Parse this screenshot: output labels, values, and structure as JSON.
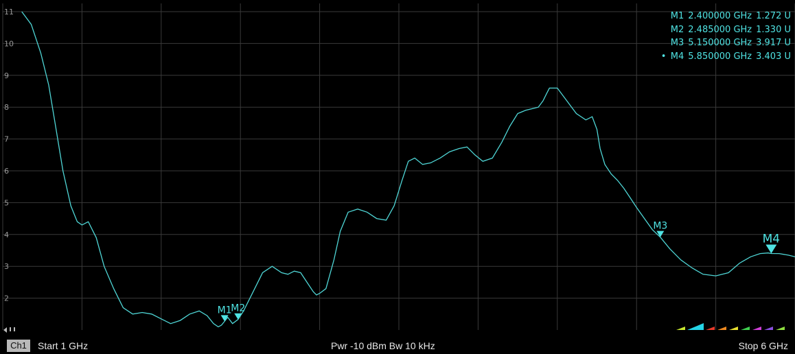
{
  "chart_data": {
    "type": "line",
    "x_unit": "GHz",
    "xlim": [
      1,
      6
    ],
    "ylim": [
      1,
      11
    ],
    "y_ticks": [
      "2",
      "3",
      "4",
      "5",
      "6",
      "7",
      "8",
      "9",
      "10",
      "11"
    ],
    "grid": true,
    "line_color": "#4fd6d6",
    "series": [
      {
        "x": [
          1.12,
          1.18,
          1.24,
          1.29,
          1.33,
          1.38,
          1.43,
          1.47,
          1.5,
          1.54,
          1.59,
          1.64,
          1.7,
          1.76,
          1.82,
          1.88,
          1.94,
          2.0,
          2.06,
          2.12,
          2.18,
          2.24,
          2.29,
          2.33,
          2.36,
          2.38,
          2.4,
          2.42,
          2.45,
          2.485,
          2.52,
          2.58,
          2.64,
          2.7,
          2.76,
          2.8,
          2.84,
          2.88,
          2.92,
          2.96,
          2.98,
          3.0,
          3.04,
          3.09,
          3.13,
          3.18,
          3.24,
          3.3,
          3.36,
          3.42,
          3.47,
          3.52,
          3.56,
          3.6,
          3.65,
          3.7,
          3.76,
          3.82,
          3.88,
          3.93,
          3.98,
          4.03,
          4.09,
          4.15,
          4.2,
          4.25,
          4.3,
          4.34,
          4.38,
          4.41,
          4.43,
          4.45,
          4.5,
          4.56,
          4.62,
          4.68,
          4.72,
          4.75,
          4.77,
          4.8,
          4.84,
          4.88,
          4.92,
          4.96,
          5.0,
          5.05,
          5.1,
          5.15,
          5.21,
          5.28,
          5.35,
          5.42,
          5.5,
          5.58,
          5.65,
          5.72,
          5.78,
          5.83,
          5.85,
          5.9,
          5.96,
          6.0
        ],
        "y": [
          11.0,
          10.6,
          9.7,
          8.7,
          7.5,
          6.0,
          4.9,
          4.4,
          4.3,
          4.4,
          3.9,
          3.0,
          2.3,
          1.7,
          1.5,
          1.55,
          1.5,
          1.35,
          1.2,
          1.3,
          1.5,
          1.6,
          1.45,
          1.2,
          1.1,
          1.15,
          1.272,
          1.4,
          1.2,
          1.33,
          1.6,
          2.2,
          2.8,
          3.0,
          2.8,
          2.75,
          2.85,
          2.8,
          2.5,
          2.2,
          2.1,
          2.15,
          2.3,
          3.2,
          4.1,
          4.7,
          4.8,
          4.7,
          4.5,
          4.45,
          4.9,
          5.7,
          6.3,
          6.4,
          6.2,
          6.25,
          6.4,
          6.6,
          6.7,
          6.75,
          6.5,
          6.3,
          6.4,
          6.9,
          7.4,
          7.8,
          7.9,
          7.95,
          8.0,
          8.2,
          8.4,
          8.6,
          8.6,
          8.2,
          7.8,
          7.6,
          7.7,
          7.3,
          6.7,
          6.2,
          5.9,
          5.7,
          5.45,
          5.15,
          4.85,
          4.5,
          4.15,
          3.917,
          3.55,
          3.2,
          2.95,
          2.75,
          2.7,
          2.8,
          3.1,
          3.3,
          3.4,
          3.42,
          3.403,
          3.4,
          3.35,
          3.3
        ]
      }
    ],
    "markers": [
      {
        "label": "M1",
        "freq": "2.400000 GHz",
        "value": "1.272 U",
        "x": 2.4,
        "y": 1.272
      },
      {
        "label": "M2",
        "freq": "2.485000 GHz",
        "value": "1.330 U",
        "x": 2.485,
        "y": 1.33
      },
      {
        "label": "M3",
        "freq": "5.150000 GHz",
        "value": "3.917 U",
        "x": 5.15,
        "y": 3.917
      },
      {
        "label": "M4",
        "freq": "5.850000 GHz",
        "value": "3.403 U",
        "x": 5.85,
        "y": 3.403,
        "active": true
      }
    ]
  },
  "status": {
    "channel": "Ch1",
    "start": "Start  1 GHz",
    "middle": "Pwr  -10 dBm  Bw  10 kHz",
    "stop": "Stop  6 GHz"
  }
}
